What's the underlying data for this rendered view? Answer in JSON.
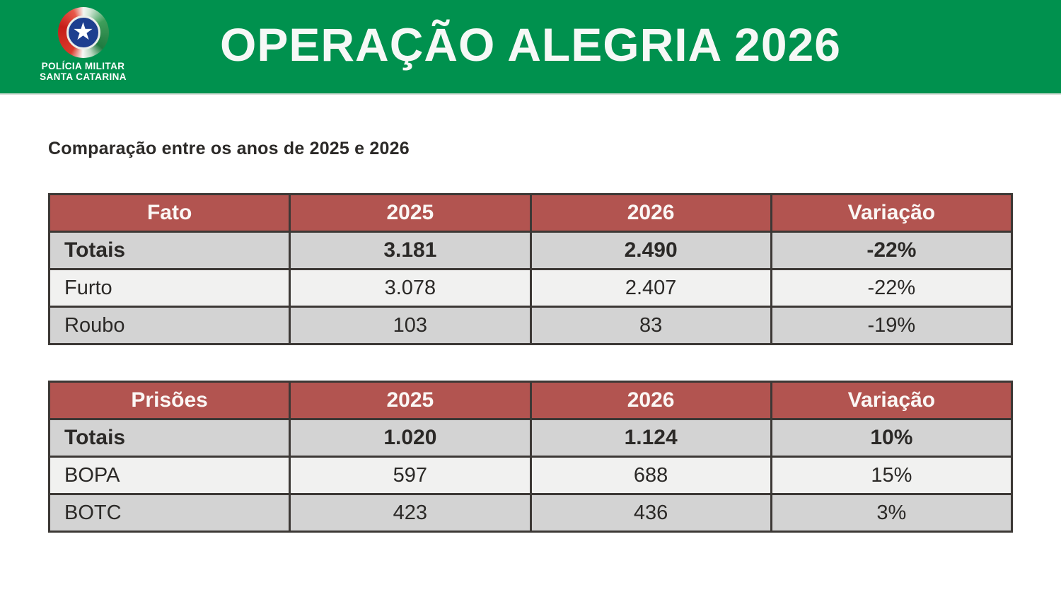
{
  "header": {
    "title": "OPERAÇÃO ALEGRIA 2026",
    "background_color": "#00914e",
    "logo": {
      "star_glyph": "★",
      "org_line1": "POLÍCIA MILITAR",
      "org_line2": "SANTA CATARINA",
      "core_color": "#1d3e8f",
      "swirl_colors": [
        "#c61d18",
        "#1f7a40",
        "#f2f6f2"
      ]
    }
  },
  "subtitle": "Comparação entre os anos de 2025 e 2026",
  "colors": {
    "table_header_bg": "#b25450",
    "row_gray": "#d3d3d3",
    "row_light": "#f1f1f0",
    "border": "#3c3835",
    "text": "#2b2927"
  },
  "tables": [
    {
      "headers": [
        "Fato",
        "2025",
        "2026",
        "Variação"
      ],
      "rows": [
        {
          "label": "Totais",
          "v2025": "3.181",
          "v2026": "2.490",
          "variation": "-22%"
        },
        {
          "label": "Furto",
          "v2025": "3.078",
          "v2026": "2.407",
          "variation": "-22%"
        },
        {
          "label": "Roubo",
          "v2025": "103",
          "v2026": "83",
          "variation": "-19%"
        }
      ]
    },
    {
      "headers": [
        "Prisões",
        "2025",
        "2026",
        "Variação"
      ],
      "rows": [
        {
          "label": "Totais",
          "v2025": "1.020",
          "v2026": "1.124",
          "variation": "10%"
        },
        {
          "label": "BOPA",
          "v2025": "597",
          "v2026": "688",
          "variation": "15%"
        },
        {
          "label": "BOTC",
          "v2025": "423",
          "v2026": "436",
          "variation": "3%"
        }
      ]
    }
  ]
}
